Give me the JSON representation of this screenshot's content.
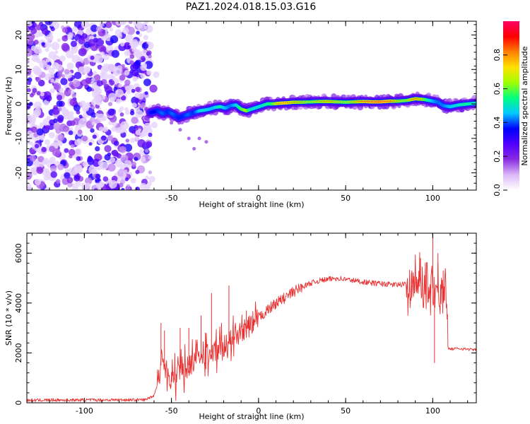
{
  "figure": {
    "title": "PAZ1.2024.018.15.03.G16"
  },
  "chart_data": [
    {
      "type": "heatmap",
      "name": "spectrogram",
      "xlabel": "Height of straight line (km)",
      "ylabel": "Frequency (Hz)",
      "xlim": [
        -133,
        125
      ],
      "ylim": [
        -25,
        24
      ],
      "xticks": [
        -100,
        -50,
        0,
        50,
        100
      ],
      "yticks": [
        -20,
        -10,
        0,
        10,
        20
      ],
      "xtick_labels": [
        "-100",
        "-50",
        "0",
        "50",
        "100"
      ],
      "ytick_labels": [
        "-20",
        "-10",
        "0",
        "10",
        "20"
      ],
      "colorbar": {
        "label": "Normalized spectral amplitude",
        "range": [
          0,
          1
        ],
        "ticks": [
          0,
          0.2,
          0.4,
          0.6,
          0.8
        ],
        "tick_labels": [
          "0.0",
          "0.2",
          "0.4",
          "0.6",
          "0.8"
        ],
        "colormap": [
          "#ffffff",
          "#dcb8f8",
          "#8a2be2",
          "#5000ff",
          "#0000ff",
          "#00c8ff",
          "#00ff80",
          "#a0ff00",
          "#ffe000",
          "#ff8000",
          "#ff0000",
          "#ff0066"
        ]
      },
      "noise_region_x": [
        -133,
        -62
      ],
      "ridge": {
        "x": [
          -62,
          -58,
          -55,
          -52,
          -49,
          -46,
          -43,
          -40,
          -37,
          -34,
          -31,
          -28,
          -25,
          -22,
          -19,
          -16,
          -13,
          -10,
          -7,
          -4,
          -1,
          2,
          5,
          8,
          12,
          16,
          20,
          25,
          30,
          35,
          40,
          45,
          50,
          55,
          60,
          65,
          70,
          75,
          80,
          85,
          90,
          95,
          100,
          103,
          106,
          110,
          115,
          120,
          125
        ],
        "y": [
          -2.5,
          -2.0,
          -2.8,
          -2.2,
          -3.0,
          -4.0,
          -3.5,
          -3.0,
          -2.5,
          -2.0,
          -1.8,
          -1.5,
          -1.0,
          -0.8,
          -1.2,
          -0.5,
          -0.3,
          -1.5,
          -2.0,
          -1.5,
          -1.0,
          -0.5,
          0.0,
          0.0,
          0.2,
          0.3,
          0.5,
          0.5,
          0.6,
          0.7,
          0.7,
          0.6,
          0.5,
          0.6,
          0.7,
          0.6,
          0.6,
          0.8,
          0.8,
          1.0,
          1.5,
          1.3,
          0.8,
          0.5,
          -0.5,
          -0.8,
          -0.3,
          0.0,
          0.2
        ],
        "amplitude": [
          0.45,
          0.5,
          0.55,
          0.5,
          0.55,
          0.5,
          0.5,
          0.55,
          0.5,
          0.6,
          0.65,
          0.6,
          0.6,
          0.7,
          0.6,
          0.55,
          0.6,
          0.75,
          0.85,
          0.65,
          0.65,
          0.65,
          0.7,
          0.75,
          0.9,
          0.95,
          0.85,
          0.8,
          0.75,
          0.8,
          0.85,
          0.8,
          0.75,
          0.8,
          0.9,
          0.95,
          1.0,
          0.95,
          0.8,
          0.75,
          0.9,
          0.8,
          0.6,
          0.55,
          0.55,
          0.6,
          0.65,
          0.7,
          0.65
        ]
      },
      "secondary_trace": {
        "x": [
          -55,
          -50,
          -45,
          -40,
          -37,
          -34,
          -30
        ],
        "y": [
          -4,
          -5.5,
          -7.5,
          -10,
          -13,
          -10,
          -11
        ]
      }
    },
    {
      "type": "line",
      "name": "snr",
      "xlabel": "Height of straight line (km)",
      "ylabel": "SNR (10 * v/v)",
      "xlim": [
        -133,
        125
      ],
      "ylim": [
        0,
        6800
      ],
      "xticks": [
        -100,
        -50,
        0,
        50,
        100
      ],
      "yticks": [
        0,
        2000,
        4000,
        6000
      ],
      "xtick_labels": [
        "-100",
        "-50",
        "0",
        "50",
        "100"
      ],
      "ytick_labels": [
        "0",
        "2000",
        "4000",
        "6000"
      ],
      "color": "#e83030",
      "series": [
        {
          "x": [
            -133,
            -120,
            -100,
            -80,
            -65,
            -60,
            -57,
            -55,
            -53,
            -50,
            -45,
            -40,
            -35,
            -30,
            -25,
            -20,
            -15,
            -10,
            -5,
            0,
            5,
            10,
            15,
            20,
            25,
            30,
            35,
            40,
            45,
            50,
            55,
            60,
            65,
            70,
            75,
            80,
            85,
            90,
            95,
            100,
            103,
            105,
            107,
            108,
            109,
            110,
            115,
            120,
            125
          ],
          "y": [
            100,
            110,
            110,
            120,
            120,
            300,
            1000,
            2000,
            1200,
            900,
            1200,
            1500,
            1700,
            1900,
            2100,
            2300,
            2500,
            2800,
            3100,
            3400,
            3700,
            4000,
            4200,
            4450,
            4650,
            4800,
            4900,
            4950,
            5000,
            4950,
            4900,
            4850,
            4800,
            4780,
            4750,
            4730,
            4750,
            4800,
            4800,
            4600,
            4600,
            4550,
            4500,
            4500,
            2200,
            2150,
            2180,
            2150,
            2120
          ],
          "spikes": [
            {
              "x": -56,
              "y": 3200
            },
            {
              "x": -54,
              "y": 2900
            },
            {
              "x": -45,
              "y": 3000
            },
            {
              "x": -40,
              "y": 3000
            },
            {
              "x": -33,
              "y": 3500
            },
            {
              "x": -27,
              "y": 4400
            },
            {
              "x": -17,
              "y": 4700
            },
            {
              "x": -7,
              "y": 3700
            },
            {
              "x": 88,
              "y": 5300
            },
            {
              "x": 93,
              "y": 5800
            },
            {
              "x": 100,
              "y": 6800
            },
            {
              "x": 101,
              "y": 1600
            },
            {
              "x": 103,
              "y": 6000
            },
            {
              "x": 106,
              "y": 5300
            }
          ]
        }
      ]
    }
  ]
}
